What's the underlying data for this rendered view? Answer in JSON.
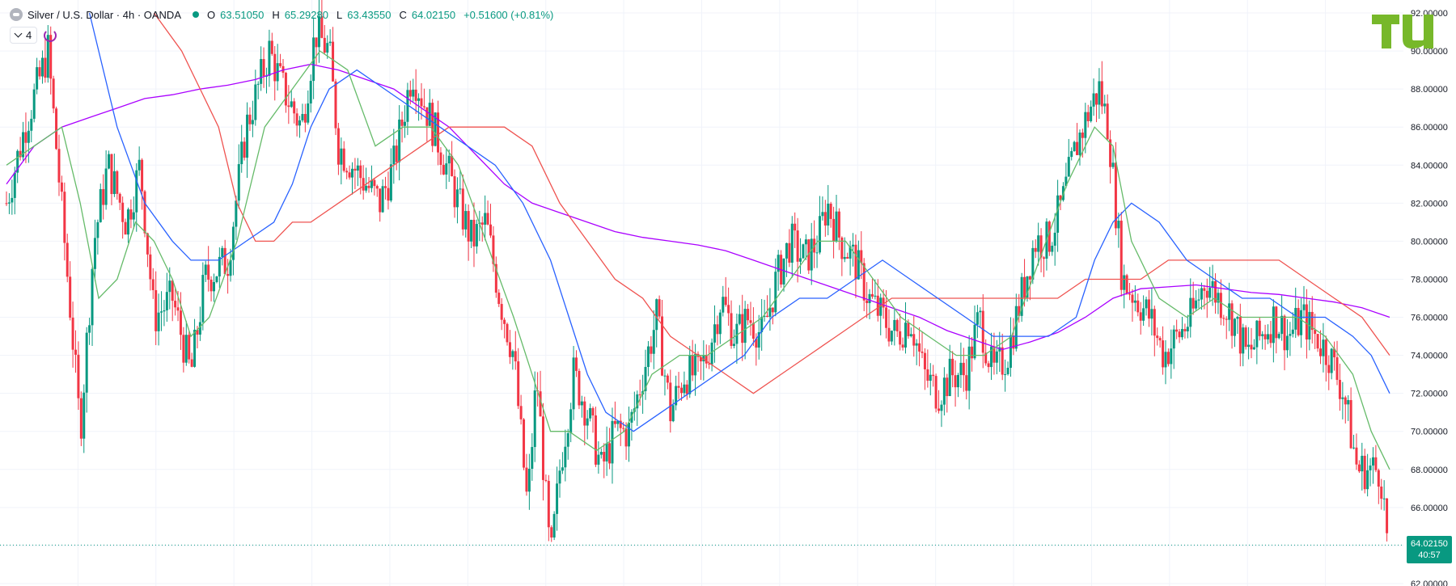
{
  "header": {
    "symbol": "Silver / U.S. Dollar · 4h · OANDA",
    "open_label": "O",
    "open": "63.51050",
    "high_label": "H",
    "high": "65.29280",
    "low_label": "L",
    "low": "63.43550",
    "close_label": "C",
    "close": "64.02150",
    "change": "+0.51600 (+0.81%)"
  },
  "indicators": {
    "count": "4"
  },
  "price_tag": {
    "price": "64.02150",
    "countdown": "40:57"
  },
  "colors": {
    "up": "#089981",
    "down": "#f23645",
    "ma_green": "#66bb6a",
    "ma_blue": "#2962ff",
    "ma_red": "#ef5350",
    "ma_purple": "#aa00ff",
    "logo": "#77b82a"
  },
  "chart_data": {
    "type": "candlestick",
    "y_axis_ticks": [
      "92.00000",
      "90.00000",
      "88.00000",
      "86.00000",
      "84.00000",
      "82.00000",
      "80.00000",
      "78.00000",
      "76.00000",
      "74.00000",
      "72.00000",
      "70.00000",
      "68.00000",
      "66.00000",
      "64.00000",
      "62.00000"
    ],
    "ylim": [
      62,
      92
    ],
    "last_price": 64.0215,
    "close_path": [
      [
        0,
        82
      ],
      [
        20,
        86
      ],
      [
        45,
        90
      ],
      [
        70,
        76
      ],
      [
        80,
        70
      ],
      [
        95,
        80
      ],
      [
        110,
        84
      ],
      [
        130,
        81
      ],
      [
        145,
        84
      ],
      [
        160,
        76
      ],
      [
        180,
        77
      ],
      [
        200,
        73
      ],
      [
        215,
        78
      ],
      [
        240,
        79
      ],
      [
        260,
        86
      ],
      [
        285,
        90
      ],
      [
        300,
        88
      ],
      [
        320,
        86
      ],
      [
        335,
        91
      ],
      [
        350,
        90
      ],
      [
        360,
        85
      ],
      [
        375,
        84
      ],
      [
        390,
        83
      ],
      [
        405,
        82
      ],
      [
        420,
        84
      ],
      [
        440,
        89
      ],
      [
        455,
        87
      ],
      [
        470,
        85
      ],
      [
        490,
        82
      ],
      [
        505,
        80
      ],
      [
        520,
        81
      ],
      [
        535,
        77
      ],
      [
        550,
        74
      ],
      [
        565,
        66
      ],
      [
        575,
        73
      ],
      [
        590,
        63
      ],
      [
        600,
        68
      ],
      [
        615,
        73
      ],
      [
        630,
        71
      ],
      [
        645,
        68
      ],
      [
        660,
        70
      ],
      [
        675,
        70
      ],
      [
        690,
        73
      ],
      [
        705,
        76
      ],
      [
        720,
        71
      ],
      [
        735,
        73
      ],
      [
        750,
        73
      ],
      [
        760,
        74
      ],
      [
        775,
        77
      ],
      [
        790,
        75
      ],
      [
        805,
        76
      ],
      [
        820,
        75
      ],
      [
        835,
        78
      ],
      [
        850,
        80
      ],
      [
        865,
        79
      ],
      [
        880,
        80
      ],
      [
        890,
        82
      ],
      [
        905,
        80
      ],
      [
        920,
        79
      ],
      [
        935,
        77
      ],
      [
        950,
        76
      ],
      [
        965,
        75
      ],
      [
        980,
        76
      ],
      [
        995,
        73
      ],
      [
        1010,
        72
      ],
      [
        1025,
        73
      ],
      [
        1040,
        73
      ],
      [
        1055,
        76
      ],
      [
        1070,
        73
      ],
      [
        1085,
        74
      ],
      [
        1100,
        77
      ],
      [
        1115,
        80
      ],
      [
        1130,
        80
      ],
      [
        1145,
        82
      ],
      [
        1160,
        85
      ],
      [
        1175,
        87
      ],
      [
        1185,
        88
      ],
      [
        1195,
        86
      ],
      [
        1210,
        78
      ],
      [
        1225,
        77
      ],
      [
        1240,
        76
      ],
      [
        1255,
        74
      ],
      [
        1270,
        75
      ],
      [
        1285,
        76
      ],
      [
        1300,
        78
      ],
      [
        1315,
        77
      ],
      [
        1330,
        76
      ],
      [
        1345,
        74
      ],
      [
        1360,
        75
      ],
      [
        1375,
        76
      ],
      [
        1390,
        75
      ],
      [
        1405,
        76
      ],
      [
        1420,
        75
      ],
      [
        1435,
        74
      ],
      [
        1450,
        72
      ],
      [
        1465,
        68
      ],
      [
        1480,
        68
      ],
      [
        1490,
        68
      ],
      [
        1498,
        64
      ]
    ],
    "ma_green": [
      [
        0,
        84
      ],
      [
        30,
        85
      ],
      [
        60,
        86
      ],
      [
        80,
        82
      ],
      [
        100,
        77
      ],
      [
        120,
        78
      ],
      [
        140,
        81
      ],
      [
        160,
        80
      ],
      [
        180,
        78
      ],
      [
        200,
        75
      ],
      [
        220,
        76
      ],
      [
        250,
        80
      ],
      [
        280,
        86
      ],
      [
        310,
        88
      ],
      [
        340,
        90
      ],
      [
        370,
        89
      ],
      [
        400,
        85
      ],
      [
        430,
        86
      ],
      [
        460,
        86
      ],
      [
        490,
        84
      ],
      [
        520,
        80
      ],
      [
        550,
        76
      ],
      [
        570,
        73
      ],
      [
        590,
        70
      ],
      [
        610,
        70
      ],
      [
        640,
        69
      ],
      [
        670,
        70
      ],
      [
        700,
        73
      ],
      [
        730,
        74
      ],
      [
        760,
        74
      ],
      [
        790,
        75
      ],
      [
        820,
        76
      ],
      [
        850,
        78
      ],
      [
        880,
        80
      ],
      [
        910,
        80
      ],
      [
        940,
        78
      ],
      [
        970,
        76
      ],
      [
        1000,
        75
      ],
      [
        1030,
        74
      ],
      [
        1060,
        74
      ],
      [
        1090,
        75
      ],
      [
        1120,
        79
      ],
      [
        1150,
        83
      ],
      [
        1180,
        86
      ],
      [
        1200,
        85
      ],
      [
        1220,
        80
      ],
      [
        1250,
        77
      ],
      [
        1280,
        76
      ],
      [
        1310,
        77
      ],
      [
        1340,
        76
      ],
      [
        1370,
        76
      ],
      [
        1400,
        76
      ],
      [
        1430,
        75
      ],
      [
        1460,
        73
      ],
      [
        1480,
        70
      ],
      [
        1500,
        68
      ]
    ],
    "ma_blue": [
      [
        90,
        92
      ],
      [
        120,
        86
      ],
      [
        150,
        82
      ],
      [
        180,
        80
      ],
      [
        200,
        79
      ],
      [
        230,
        79
      ],
      [
        260,
        80
      ],
      [
        290,
        81
      ],
      [
        310,
        83
      ],
      [
        330,
        86
      ],
      [
        350,
        88
      ],
      [
        380,
        89
      ],
      [
        410,
        88
      ],
      [
        440,
        87
      ],
      [
        470,
        86
      ],
      [
        500,
        85
      ],
      [
        530,
        84
      ],
      [
        560,
        82
      ],
      [
        590,
        79
      ],
      [
        610,
        76
      ],
      [
        630,
        73
      ],
      [
        650,
        71
      ],
      [
        680,
        70
      ],
      [
        710,
        71
      ],
      [
        740,
        72
      ],
      [
        770,
        73
      ],
      [
        800,
        74
      ],
      [
        830,
        76
      ],
      [
        860,
        77
      ],
      [
        890,
        77
      ],
      [
        920,
        78
      ],
      [
        950,
        79
      ],
      [
        980,
        78
      ],
      [
        1010,
        77
      ],
      [
        1040,
        76
      ],
      [
        1070,
        75
      ],
      [
        1100,
        75
      ],
      [
        1130,
        75
      ],
      [
        1160,
        76
      ],
      [
        1180,
        79
      ],
      [
        1200,
        81
      ],
      [
        1220,
        82
      ],
      [
        1250,
        81
      ],
      [
        1280,
        79
      ],
      [
        1310,
        78
      ],
      [
        1340,
        77
      ],
      [
        1370,
        77
      ],
      [
        1400,
        76
      ],
      [
        1430,
        76
      ],
      [
        1460,
        75
      ],
      [
        1480,
        74
      ],
      [
        1500,
        72
      ]
    ],
    "ma_red": [
      [
        160,
        92
      ],
      [
        190,
        90
      ],
      [
        210,
        88
      ],
      [
        230,
        86
      ],
      [
        250,
        82
      ],
      [
        270,
        80
      ],
      [
        290,
        80
      ],
      [
        310,
        81
      ],
      [
        330,
        81
      ],
      [
        360,
        82
      ],
      [
        390,
        83
      ],
      [
        420,
        84
      ],
      [
        450,
        85
      ],
      [
        480,
        86
      ],
      [
        510,
        86
      ],
      [
        540,
        86
      ],
      [
        570,
        85
      ],
      [
        600,
        82
      ],
      [
        630,
        80
      ],
      [
        660,
        78
      ],
      [
        690,
        77
      ],
      [
        720,
        75
      ],
      [
        750,
        74
      ],
      [
        780,
        73
      ],
      [
        810,
        72
      ],
      [
        840,
        73
      ],
      [
        870,
        74
      ],
      [
        900,
        75
      ],
      [
        930,
        76
      ],
      [
        960,
        77
      ],
      [
        990,
        77
      ],
      [
        1020,
        77
      ],
      [
        1050,
        77
      ],
      [
        1080,
        77
      ],
      [
        1110,
        77
      ],
      [
        1140,
        77
      ],
      [
        1170,
        78
      ],
      [
        1200,
        78
      ],
      [
        1230,
        78
      ],
      [
        1260,
        79
      ],
      [
        1290,
        79
      ],
      [
        1320,
        79
      ],
      [
        1350,
        79
      ],
      [
        1380,
        79
      ],
      [
        1410,
        78
      ],
      [
        1440,
        77
      ],
      [
        1470,
        76
      ],
      [
        1500,
        74
      ]
    ],
    "ma_purple": [
      [
        0,
        83
      ],
      [
        30,
        85
      ],
      [
        60,
        86
      ],
      [
        90,
        86.5
      ],
      [
        120,
        87
      ],
      [
        150,
        87.5
      ],
      [
        180,
        87.7
      ],
      [
        210,
        88
      ],
      [
        240,
        88.2
      ],
      [
        270,
        88.5
      ],
      [
        300,
        89
      ],
      [
        330,
        89.3
      ],
      [
        360,
        89
      ],
      [
        390,
        88.5
      ],
      [
        420,
        88
      ],
      [
        450,
        87
      ],
      [
        480,
        86
      ],
      [
        510,
        84.5
      ],
      [
        540,
        83
      ],
      [
        570,
        82
      ],
      [
        600,
        81.5
      ],
      [
        630,
        81
      ],
      [
        660,
        80.5
      ],
      [
        690,
        80.2
      ],
      [
        720,
        80
      ],
      [
        750,
        79.8
      ],
      [
        780,
        79.5
      ],
      [
        810,
        79
      ],
      [
        840,
        78.5
      ],
      [
        870,
        78
      ],
      [
        900,
        77.5
      ],
      [
        930,
        77
      ],
      [
        960,
        76.5
      ],
      [
        990,
        76
      ],
      [
        1020,
        75.3
      ],
      [
        1050,
        74.8
      ],
      [
        1080,
        74.3
      ],
      [
        1110,
        74.7
      ],
      [
        1140,
        75.2
      ],
      [
        1170,
        76
      ],
      [
        1200,
        77
      ],
      [
        1230,
        77.5
      ],
      [
        1260,
        77.6
      ],
      [
        1290,
        77.7
      ],
      [
        1320,
        77.5
      ],
      [
        1350,
        77.3
      ],
      [
        1380,
        77.2
      ],
      [
        1410,
        77
      ],
      [
        1440,
        76.8
      ],
      [
        1470,
        76.5
      ],
      [
        1500,
        76
      ]
    ]
  }
}
